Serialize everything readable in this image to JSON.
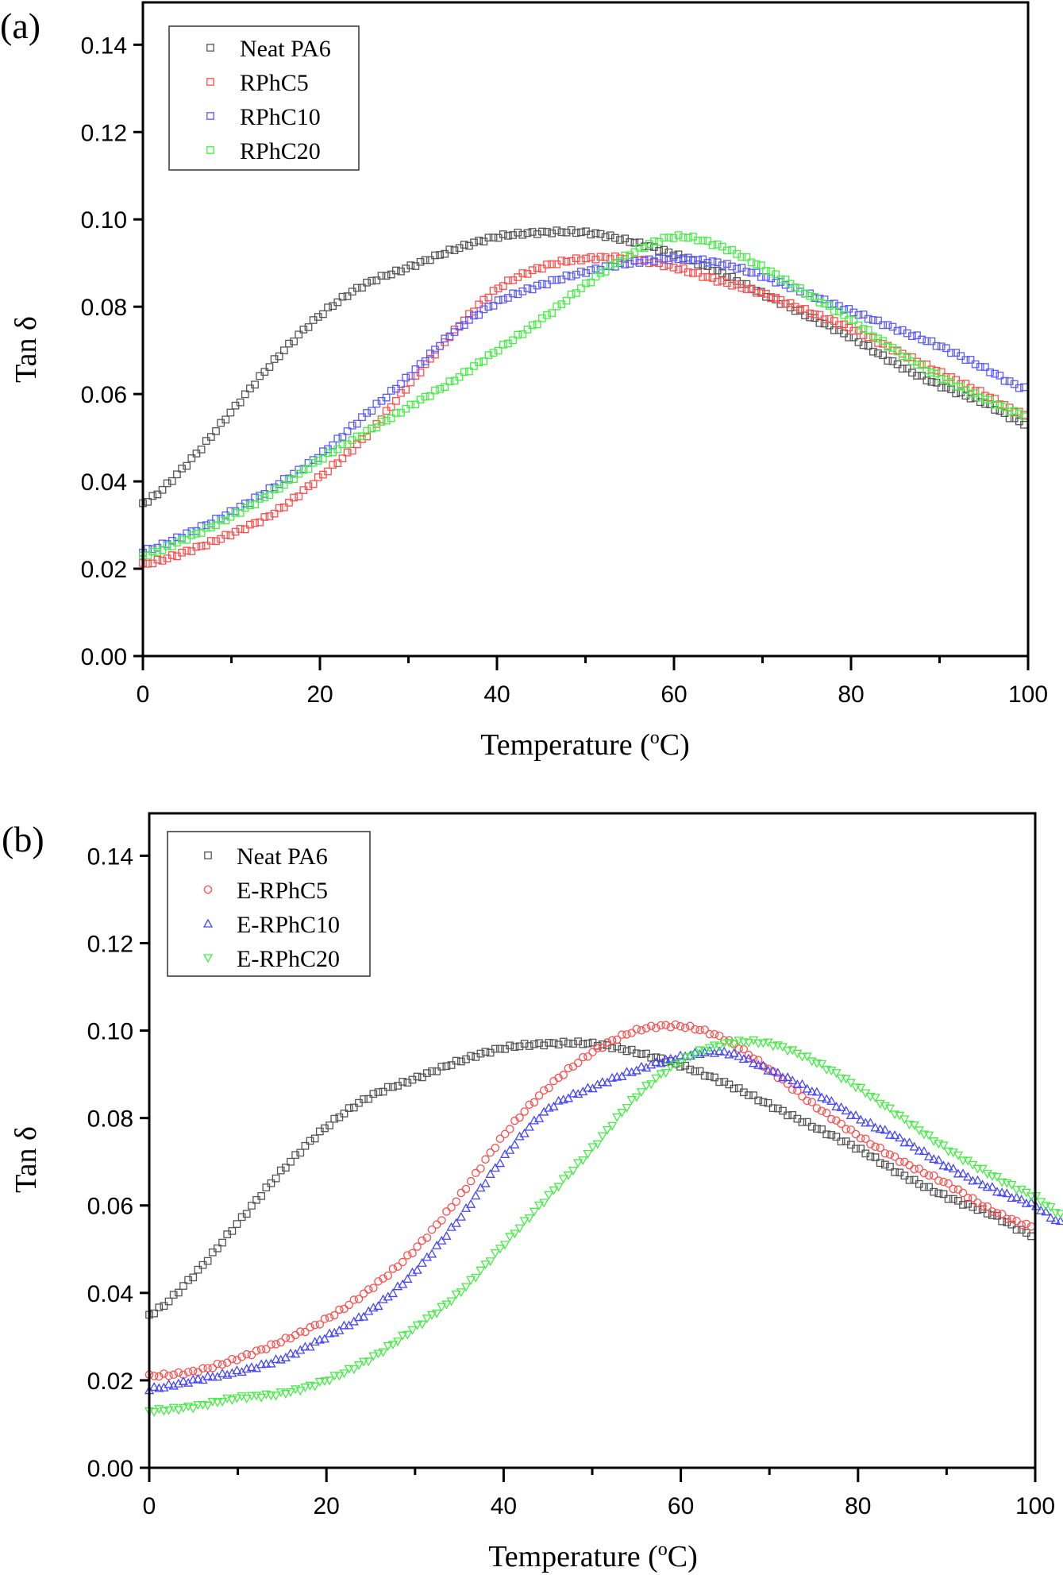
{
  "chart_data": [
    {
      "panel_label": "(a)",
      "type": "scatter",
      "xlabel": "Temperature (oC)",
      "xlabel_main": "Temperature (",
      "xlabel_sup": "o",
      "xlabel_tail": "C)",
      "ylabel": "Tan δ",
      "xlim": [
        0,
        100
      ],
      "ylim": [
        0.0,
        0.15
      ],
      "xticks": [
        0,
        20,
        40,
        60,
        80,
        100
      ],
      "xtick_labels": [
        "0",
        "20",
        "40",
        "60",
        "80",
        "100"
      ],
      "x_minor_ticks": [
        10,
        30,
        50,
        70,
        90
      ],
      "yticks": [
        0.0,
        0.02,
        0.04,
        0.06,
        0.08,
        0.1,
        0.12,
        0.14
      ],
      "ytick_labels": [
        "0.00",
        "0.02",
        "0.04",
        "0.06",
        "0.08",
        "0.10",
        "0.12",
        "0.14"
      ],
      "grid": false,
      "legend_position": "top-left",
      "x": [
        0,
        5,
        10,
        15,
        20,
        25,
        30,
        35,
        40,
        45,
        50,
        55,
        60,
        65,
        70,
        75,
        80,
        85,
        90,
        95,
        100
      ],
      "series": [
        {
          "name": "Neat PA6",
          "color": "#555555",
          "marker": "square",
          "values": [
            0.035,
            0.044,
            0.056,
            0.068,
            0.078,
            0.085,
            0.089,
            0.093,
            0.096,
            0.097,
            0.097,
            0.095,
            0.092,
            0.088,
            0.083,
            0.078,
            0.073,
            0.067,
            0.062,
            0.058,
            0.053
          ]
        },
        {
          "name": "RPhC5",
          "color": "#ff4d4d",
          "marker": "square",
          "values": [
            0.021,
            0.024,
            0.028,
            0.033,
            0.041,
            0.05,
            0.062,
            0.074,
            0.084,
            0.089,
            0.091,
            0.091,
            0.089,
            0.086,
            0.083,
            0.079,
            0.075,
            0.07,
            0.065,
            0.06,
            0.055
          ]
        },
        {
          "name": "RPhC10",
          "color": "#5a5aff",
          "marker": "square",
          "values": [
            0.024,
            0.028,
            0.033,
            0.039,
            0.046,
            0.055,
            0.064,
            0.074,
            0.081,
            0.085,
            0.088,
            0.09,
            0.091,
            0.09,
            0.087,
            0.083,
            0.079,
            0.075,
            0.071,
            0.066,
            0.061
          ]
        },
        {
          "name": "RPhC20",
          "color": "#44ee44",
          "marker": "square",
          "values": [
            0.023,
            0.027,
            0.032,
            0.038,
            0.045,
            0.051,
            0.057,
            0.063,
            0.07,
            0.077,
            0.085,
            0.092,
            0.096,
            0.094,
            0.089,
            0.083,
            0.077,
            0.07,
            0.064,
            0.059,
            0.055
          ]
        }
      ]
    },
    {
      "panel_label": "(b)",
      "type": "scatter",
      "xlabel": "Temperature (oC)",
      "xlabel_main": "Temperature (",
      "xlabel_sup": "o",
      "xlabel_tail": "C)",
      "ylabel": "Tan δ",
      "xlim": [
        0,
        100
      ],
      "ylim": [
        0.0,
        0.15
      ],
      "xticks": [
        0,
        20,
        40,
        60,
        80,
        100
      ],
      "xtick_labels": [
        "0",
        "20",
        "40",
        "60",
        "80",
        "100"
      ],
      "x_minor_ticks": [
        10,
        30,
        50,
        70,
        90
      ],
      "yticks": [
        0.0,
        0.02,
        0.04,
        0.06,
        0.08,
        0.1,
        0.12,
        0.14
      ],
      "ytick_labels": [
        "0.00",
        "0.02",
        "0.04",
        "0.06",
        "0.08",
        "0.10",
        "0.12",
        "0.14"
      ],
      "grid": false,
      "legend_position": "top-left",
      "x": [
        0,
        5,
        10,
        15,
        20,
        25,
        30,
        35,
        40,
        45,
        50,
        55,
        60,
        65,
        70,
        75,
        80,
        85,
        90,
        95,
        100,
        103
      ],
      "series": [
        {
          "name": "Neat PA6",
          "color": "#555555",
          "marker": "square",
          "values": [
            0.035,
            0.044,
            0.056,
            0.068,
            0.078,
            0.085,
            0.089,
            0.093,
            0.096,
            0.097,
            0.097,
            0.095,
            0.092,
            0.088,
            0.083,
            0.078,
            0.073,
            0.067,
            0.062,
            0.058,
            0.053,
            null
          ]
        },
        {
          "name": "E-RPhC5",
          "color": "#ff4d4d",
          "marker": "circle",
          "values": [
            0.021,
            0.022,
            0.025,
            0.029,
            0.034,
            0.041,
            0.05,
            0.062,
            0.076,
            0.087,
            0.095,
            0.1,
            0.101,
            0.098,
            0.091,
            0.083,
            0.076,
            0.07,
            0.065,
            0.059,
            0.055,
            null
          ]
        },
        {
          "name": "E-RPhC10",
          "color": "#4444ff",
          "marker": "triangle-up",
          "values": [
            0.018,
            0.02,
            0.022,
            0.025,
            0.03,
            0.036,
            0.045,
            0.057,
            0.071,
            0.082,
            0.087,
            0.091,
            0.094,
            0.095,
            0.091,
            0.086,
            0.08,
            0.075,
            0.069,
            0.064,
            0.06,
            0.056
          ]
        },
        {
          "name": "E-RPhC20",
          "color": "#44ee44",
          "marker": "triangle-down",
          "values": [
            0.013,
            0.014,
            0.016,
            0.017,
            0.02,
            0.025,
            0.032,
            0.04,
            0.051,
            0.062,
            0.073,
            0.085,
            0.093,
            0.097,
            0.097,
            0.093,
            0.087,
            0.08,
            0.073,
            0.067,
            0.062,
            0.058
          ]
        }
      ]
    }
  ]
}
